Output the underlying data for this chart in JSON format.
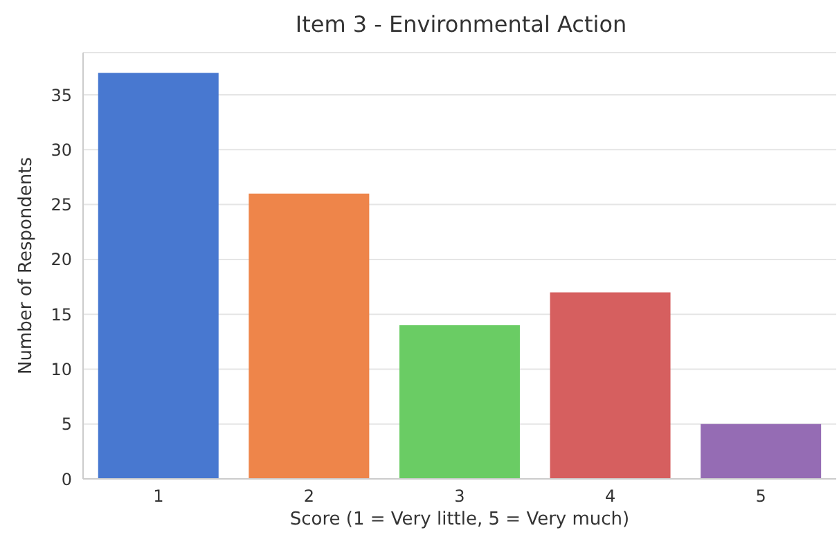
{
  "chart_data": {
    "type": "bar",
    "title": "Item 3 - Environmental Action",
    "xlabel": "Score (1 = Very little, 5 = Very much)",
    "ylabel": "Number of Respondents",
    "categories": [
      "1",
      "2",
      "3",
      "4",
      "5"
    ],
    "values": [
      37,
      26,
      14,
      17,
      5
    ],
    "colors": [
      "#4878d0",
      "#ee854a",
      "#6acc64",
      "#d65f5f",
      "#956cb4"
    ],
    "ylim": [
      0,
      38.85
    ],
    "yticks": [
      0,
      5,
      10,
      15,
      20,
      25,
      30,
      35
    ],
    "grid": "y"
  }
}
